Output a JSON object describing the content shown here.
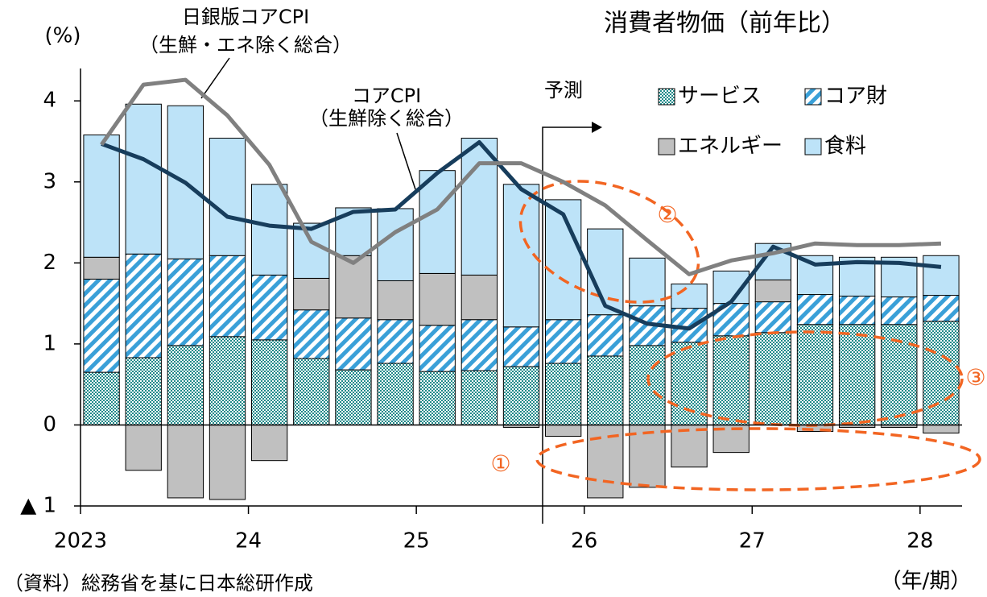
{
  "chart_data": {
    "type": "stacked_bar_line",
    "title": "消費者物価（前年比）",
    "y_unit": "(%)",
    "x_unit": "（年/期）",
    "source": "（資料）総務省を基に日本総研作成",
    "forecast_label": "予測",
    "line_labels": [
      [
        "日銀版コアCPI",
        "（生鮮・エネ除く総合）"
      ],
      [
        "コアCPI",
        "（生鮮除く総合）"
      ]
    ],
    "annotations": [
      "①",
      "②",
      "③"
    ],
    "ylim": [
      -1,
      4.4
    ],
    "yticks": [
      {
        "value": -1,
        "label": "▲ 1"
      },
      0,
      1,
      2,
      3,
      4
    ],
    "xticks": [
      {
        "value": 0,
        "label": "2023"
      },
      {
        "value": 4,
        "label": "24"
      },
      {
        "value": 8,
        "label": "25"
      },
      {
        "value": 12,
        "label": "26"
      },
      {
        "value": 16,
        "label": "27"
      },
      {
        "value": 20,
        "label": "28"
      }
    ],
    "series": [
      {
        "name": "サービス",
        "color": "#1f8a8a",
        "pattern": "check",
        "values": [
          0.65,
          0.83,
          0.98,
          1.09,
          1.05,
          0.82,
          0.68,
          0.76,
          0.66,
          0.67,
          0.72,
          0.76,
          0.85,
          0.98,
          1.02,
          1.1,
          1.14,
          1.24,
          1.24,
          1.24,
          1.28
        ]
      },
      {
        "name": "コア財",
        "color": "#3aa0d8",
        "pattern": "hatch",
        "values": [
          1.15,
          1.28,
          1.07,
          1.0,
          0.8,
          0.6,
          0.64,
          0.54,
          0.57,
          0.63,
          0.49,
          0.54,
          0.51,
          0.49,
          0.42,
          0.4,
          0.38,
          0.37,
          0.35,
          0.34,
          0.32
        ]
      },
      {
        "name": "エネルギー",
        "color": "#c0c0c0",
        "values": [
          0.27,
          -0.56,
          -0.9,
          -0.92,
          -0.44,
          0.39,
          0.77,
          0.48,
          0.64,
          0.55,
          -0.03,
          -0.14,
          -0.9,
          -0.77,
          -0.52,
          -0.34,
          0.27,
          -0.08,
          -0.03,
          -0.03,
          -0.1
        ]
      },
      {
        "name": "食料",
        "color": "#bde3f8",
        "values": [
          1.51,
          1.85,
          1.89,
          1.45,
          1.12,
          0.68,
          0.59,
          0.89,
          1.27,
          1.69,
          1.76,
          1.48,
          1.06,
          0.59,
          0.3,
          0.4,
          0.45,
          0.48,
          0.48,
          0.49,
          0.49
        ]
      },
      {
        "name": "コアCPI",
        "kind": "line",
        "color": "#173d5c",
        "values": [
          3.47,
          3.28,
          2.99,
          2.57,
          2.46,
          2.42,
          2.63,
          2.66,
          3.11,
          3.49,
          2.91,
          2.6,
          1.47,
          1.25,
          1.19,
          1.52,
          2.2,
          1.98,
          2.01,
          2.0,
          1.95
        ]
      },
      {
        "name": "日銀版コアCPI",
        "kind": "line",
        "color": "#808080",
        "values": [
          3.46,
          4.2,
          4.26,
          3.82,
          3.21,
          2.26,
          2.0,
          2.38,
          2.66,
          3.23,
          3.23,
          3.0,
          2.71,
          2.28,
          1.86,
          2.03,
          2.12,
          2.24,
          2.22,
          2.22,
          2.24
        ]
      }
    ]
  }
}
